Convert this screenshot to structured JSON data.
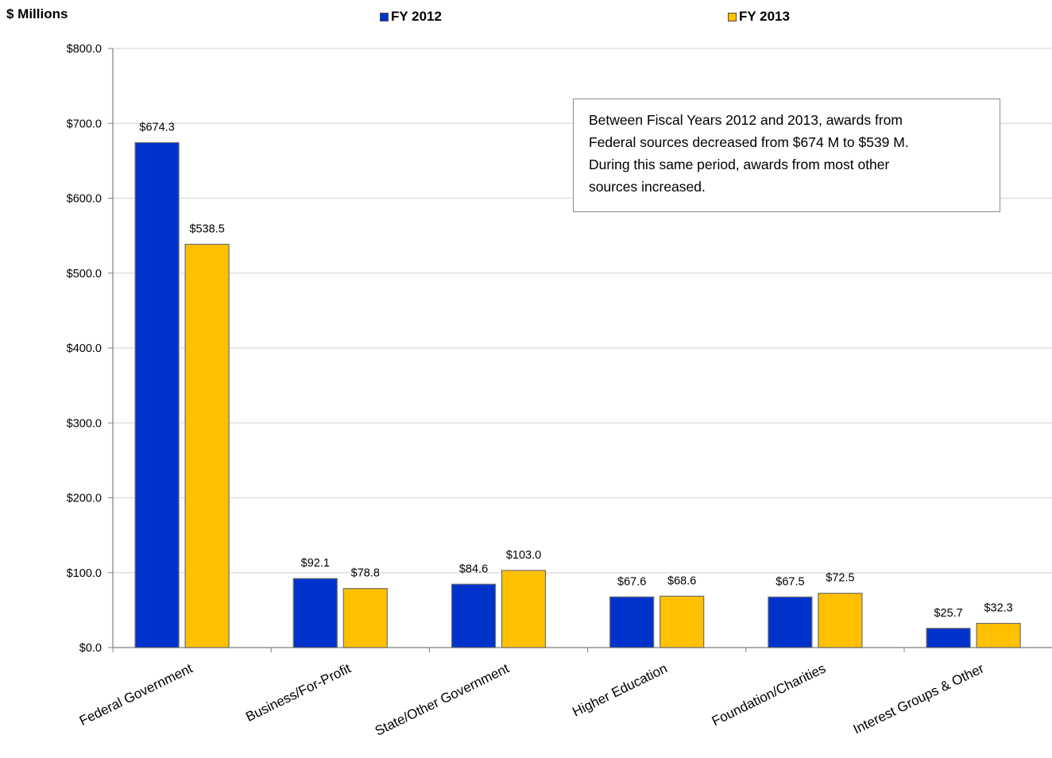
{
  "chart_data": {
    "type": "bar",
    "ylabel": "$ Millions",
    "ylim": [
      0,
      800
    ],
    "yticks": [
      0,
      100,
      200,
      300,
      400,
      500,
      600,
      700,
      800
    ],
    "ytick_labels": [
      "$0.0",
      "$100.0",
      "$200.0",
      "$300.0",
      "$400.0",
      "$500.0",
      "$600.0",
      "$700.0",
      "$800.0"
    ],
    "grid": true,
    "legend_position": "top",
    "categories": [
      "Federal Government",
      "Business/For-Profit",
      "State/Other Government",
      "Higher Education",
      "Foundation/Charities",
      "Interest Groups & Other"
    ],
    "series": [
      {
        "name": "FY 2012",
        "color": "#0033CC",
        "values": [
          674.3,
          92.1,
          84.6,
          67.6,
          67.5,
          25.7
        ],
        "labels": [
          "$674.3",
          "$92.1",
          "$84.6",
          "$67.6",
          "$67.5",
          "$25.7"
        ]
      },
      {
        "name": "FY 2013",
        "color": "#FFC000",
        "values": [
          538.5,
          78.8,
          103.0,
          68.6,
          72.5,
          32.3
        ],
        "labels": [
          "$538.5",
          "$78.8",
          "$103.0",
          "$68.6",
          "$72.5",
          "$32.3"
        ]
      }
    ],
    "annotation": {
      "lines": [
        "Between Fiscal Years 2012 and 2013, awards from",
        "Federal sources decreased from $674 M to $539 M.",
        "During this same period, awards from most other",
        "sources increased."
      ]
    }
  }
}
